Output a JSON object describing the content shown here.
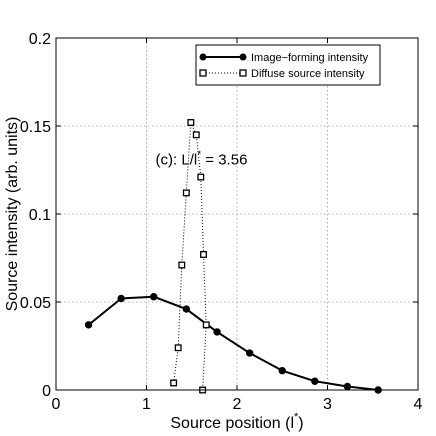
{
  "chart_data": {
    "type": "line",
    "xlabel": "Source position (l",
    "xlabel_superscript": "*",
    "xlabel_suffix": ")",
    "ylabel": "Source intensity (arb. units)",
    "xlim": [
      0,
      4
    ],
    "ylim": [
      0,
      0.2
    ],
    "xticks": [
      0,
      1,
      2,
      3,
      4
    ],
    "xtick_labels": [
      "0",
      "1",
      "2",
      "3",
      "4"
    ],
    "yticks": [
      0,
      0.05,
      0.1,
      0.15,
      0.2
    ],
    "ytick_labels": [
      "0",
      "0.05",
      "0.1",
      "0.15",
      "0.2"
    ],
    "grid": true,
    "legend_position": "top-right",
    "annotation": {
      "prefix": "(c): L/l",
      "superscript": "*",
      "suffix": " = 3.56",
      "x": 1.1,
      "y": 0.128
    },
    "series": [
      {
        "name": "Image−forming intensity",
        "style": "solid",
        "marker": "filled-circle",
        "color": "#000000",
        "x": [
          0.36,
          0.72,
          1.08,
          1.44,
          1.78,
          2.14,
          2.5,
          2.86,
          3.22,
          3.56
        ],
        "y": [
          0.037,
          0.052,
          0.053,
          0.046,
          0.033,
          0.021,
          0.011,
          0.005,
          0.002,
          0.0
        ]
      },
      {
        "name": "Diffuse source intensity",
        "style": "dotted",
        "marker": "open-square",
        "color": "#000000",
        "x": [
          1.3,
          1.35,
          1.39,
          1.44,
          1.49,
          1.55,
          1.6,
          1.63,
          1.66,
          1.62
        ],
        "y": [
          0.004,
          0.024,
          0.071,
          0.112,
          0.152,
          0.145,
          0.121,
          0.077,
          0.037,
          0.0
        ]
      }
    ]
  }
}
